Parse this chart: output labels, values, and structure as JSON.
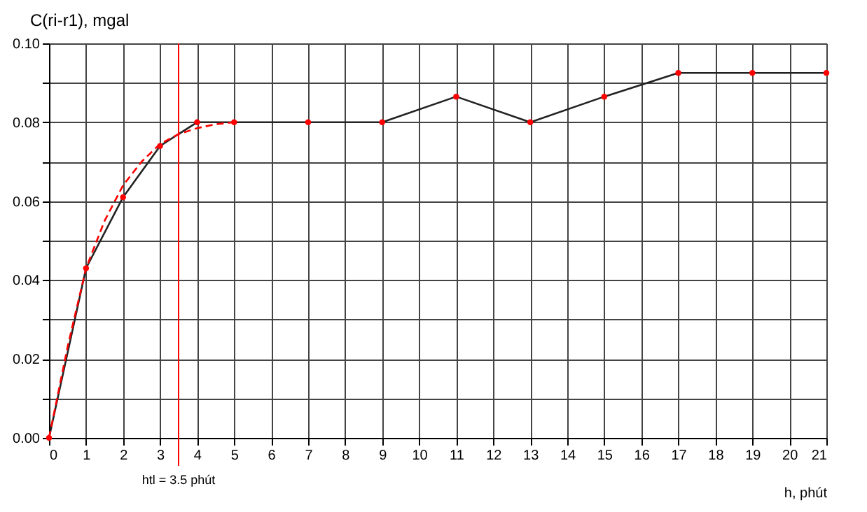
{
  "chart_data": {
    "type": "line",
    "xlabel": "h, phút",
    "ylabel": "C(ri-r1), mgal",
    "x": [
      0,
      1,
      2,
      3,
      4,
      5,
      7,
      9,
      11,
      13,
      15,
      17,
      19,
      21
    ],
    "series": [
      {
        "color": "#222222",
        "marker": "none",
        "line_style": "solid",
        "values": [
          0,
          0.043,
          0.061,
          0.074,
          0.08,
          0.08,
          0.08,
          0.08,
          0.0865,
          0.08,
          0.0865,
          0.0925,
          0.0925,
          0.0925
        ]
      },
      {
        "type": "scatter",
        "color": "#ff0000",
        "marker": "circle",
        "values": [
          0,
          0.043,
          0.061,
          0.074,
          0.08,
          0.08,
          0.08,
          0.08,
          0.0865,
          0.08,
          0.0865,
          0.0925,
          0.0925,
          0.0925
        ]
      },
      {
        "color": "#ff0000",
        "marker": "none",
        "line_style": "dashed",
        "x": [
          0,
          0.5,
          1,
          1.5,
          2,
          2.5,
          3,
          3.5,
          4,
          4.5,
          5
        ],
        "values": [
          0,
          0.023,
          0.043,
          0.055,
          0.064,
          0.07,
          0.0745,
          0.077,
          0.0785,
          0.0795,
          0.08
        ]
      }
    ],
    "xlim": [
      0,
      21
    ],
    "xticks": [
      0,
      1,
      2,
      3,
      4,
      5,
      6,
      7,
      8,
      9,
      10,
      11,
      12,
      13,
      14,
      15,
      16,
      17,
      18,
      19,
      20,
      21
    ],
    "ylim": [
      0,
      0.1
    ],
    "yticks": [
      {
        "value": 0,
        "label": "0.00"
      },
      {
        "value": 0.01,
        "label": null
      },
      {
        "value": 0.02,
        "label": "0.02"
      },
      {
        "value": 0.03,
        "label": null
      },
      {
        "value": 0.04,
        "label": "0.04"
      },
      {
        "value": 0.05,
        "label": null
      },
      {
        "value": 0.06,
        "label": "0.06"
      },
      {
        "value": 0.07,
        "label": null
      },
      {
        "value": 0.08,
        "label": "0.08"
      },
      {
        "value": 0.09,
        "label": null
      },
      {
        "value": 0.1,
        "label": "0.10"
      }
    ],
    "ref_lines": [
      {
        "axis": "x",
        "value": 3.5,
        "label": "htl = 3.5 phút",
        "color": "#ff0000",
        "line_style": "solid"
      }
    ],
    "grid": true
  }
}
